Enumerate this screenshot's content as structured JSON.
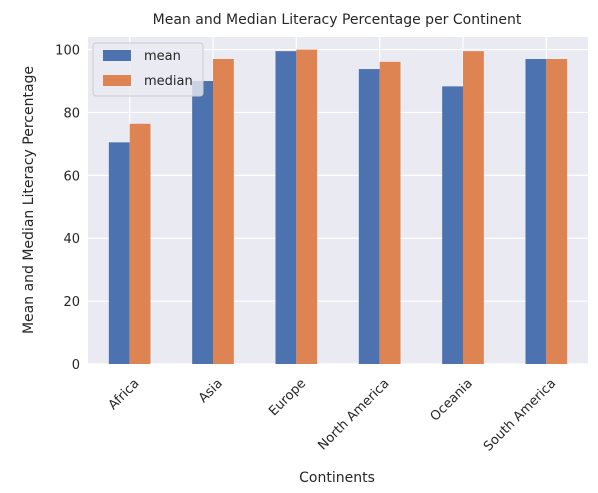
{
  "chart_data": {
    "type": "bar",
    "title": "Mean and Median Literacy Percentage per Continent",
    "xlabel": "Continents",
    "ylabel": "Mean and Median Literacy Percentage",
    "categories": [
      "Africa",
      "Asia",
      "Europe",
      "North America",
      "Oceania",
      "South America"
    ],
    "series": [
      {
        "name": "mean",
        "values": [
          70.5,
          90.0,
          99.5,
          93.8,
          88.3,
          97.0
        ],
        "color": "#4c72b0"
      },
      {
        "name": "median",
        "values": [
          76.4,
          97.0,
          100.0,
          96.1,
          99.5,
          97.0
        ],
        "color": "#dd8452"
      }
    ],
    "ylim": [
      0,
      104
    ],
    "yticks": [
      0,
      20,
      40,
      60,
      80,
      100
    ],
    "grid": true,
    "legend_position": "top-left",
    "plot_background": "#eaeaf2",
    "grid_color": "#ffffff"
  }
}
